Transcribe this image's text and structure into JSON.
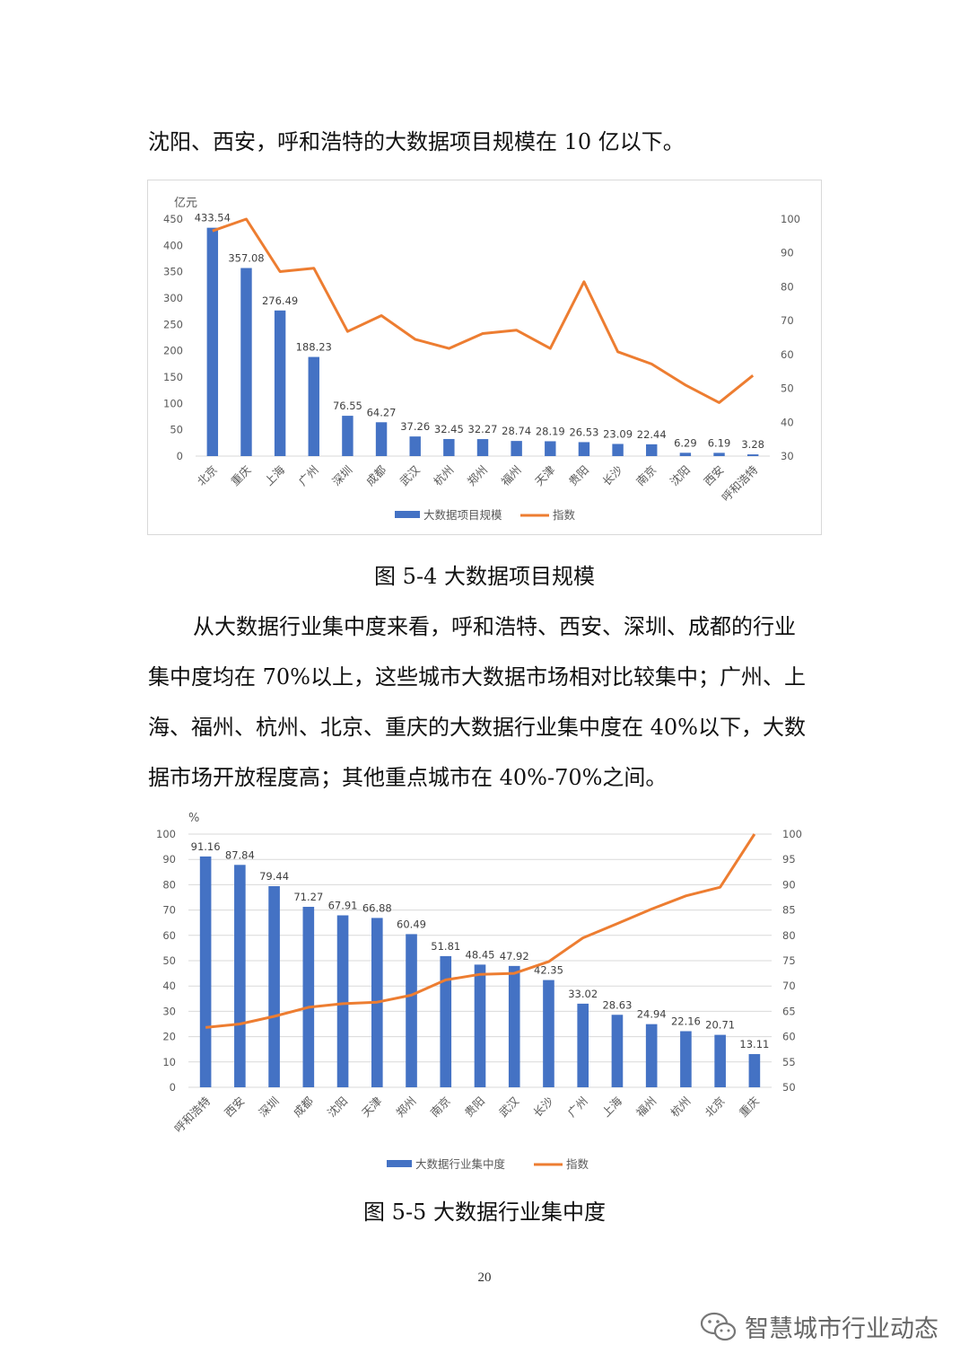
{
  "text": {
    "para_top": "沈阳、西安，呼和浩特的大数据项目规模在 10 亿以下。",
    "caption1": "图 5-4 大数据项目规模",
    "para2_line1": "从大数据行业集中度来看，呼和浩特、西安、深圳、成都的行业",
    "para2_line2": "集中度均在 70%以上，这些城市大数据市场相对比较集中；广州、上",
    "para2_line3": "海、福州、杭州、北京、重庆的大数据行业集中度在 40%以下，大数",
    "para2_line4": "据市场开放程度高；其他重点城市在 40%-70%之间。",
    "caption2": "图 5-5 大数据行业集中度",
    "page_number": "20",
    "watermark": "智慧城市行业动态"
  },
  "colors": {
    "bar": "#4472c4",
    "line": "#ed7d31",
    "grid": "#d9d9d9",
    "axis_text": "#595959"
  },
  "chart_data": [
    {
      "type": "bar",
      "ylabel": "亿元",
      "ylim": [
        0,
        450
      ],
      "yticks": [
        "0",
        "50",
        "100",
        "150",
        "200",
        "250",
        "300",
        "350",
        "400",
        "450"
      ],
      "y2lim": [
        30,
        100
      ],
      "y2ticks": [
        "30",
        "40",
        "50",
        "60",
        "70",
        "80",
        "90",
        "100"
      ],
      "categories": [
        "北京",
        "重庆",
        "上海",
        "广州",
        "深圳",
        "成都",
        "武汉",
        "杭州",
        "郑州",
        "福州",
        "天津",
        "贵阳",
        "长沙",
        "南京",
        "沈阳",
        "西安",
        "呼和浩特"
      ],
      "series": [
        {
          "name": "大数据项目规模",
          "type": "bar",
          "axis": "left",
          "values": [
            433.54,
            357.08,
            276.49,
            188.23,
            76.55,
            64.27,
            37.26,
            32.45,
            32.27,
            28.74,
            28.19,
            26.53,
            23.09,
            22.44,
            6.29,
            6.19,
            3.28
          ],
          "labels": [
            "433.54",
            "357.08",
            "276.49",
            "188.23",
            "76.55",
            "64.27",
            "37.26",
            "32.45",
            "32.27",
            "28.74",
            "28.19",
            "26.53",
            "23.09",
            "22.44",
            "6.29",
            "6.19",
            "3.28"
          ]
        },
        {
          "name": "指数",
          "type": "line",
          "axis": "right",
          "values": [
            96.5,
            100,
            84.5,
            85.5,
            66.8,
            71.5,
            64.5,
            61.8,
            66.2,
            67.2,
            61.8,
            81.5,
            60.8,
            57.2,
            51,
            45.8,
            53.8
          ]
        }
      ],
      "legend": "bottom"
    },
    {
      "type": "bar",
      "ylabel": "%",
      "ylim": [
        0,
        100
      ],
      "yticks": [
        "0",
        "10",
        "20",
        "30",
        "40",
        "50",
        "60",
        "70",
        "80",
        "90",
        "100"
      ],
      "y2lim": [
        50,
        100
      ],
      "y2ticks": [
        "50",
        "55",
        "60",
        "65",
        "70",
        "75",
        "80",
        "85",
        "90",
        "95",
        "100"
      ],
      "categories": [
        "呼和浩特",
        "西安",
        "深圳",
        "成都",
        "沈阳",
        "天津",
        "郑州",
        "南京",
        "贵阳",
        "武汉",
        "长沙",
        "广州",
        "上海",
        "福州",
        "杭州",
        "北京",
        "重庆"
      ],
      "series": [
        {
          "name": "大数据行业集中度",
          "type": "bar",
          "axis": "left",
          "values": [
            91.16,
            87.84,
            79.44,
            71.27,
            67.91,
            66.88,
            60.49,
            51.81,
            48.45,
            47.92,
            42.35,
            33.02,
            28.63,
            24.94,
            22.16,
            20.71,
            13.11
          ],
          "labels": [
            "91.16",
            "87.84",
            "79.44",
            "71.27",
            "67.91",
            "66.88",
            "60.49",
            "51.81",
            "48.45",
            "47.92",
            "42.35",
            "33.02",
            "28.63",
            "24.94",
            "22.16",
            "20.71",
            "13.11"
          ]
        },
        {
          "name": "指数",
          "type": "line",
          "axis": "right",
          "values": [
            61.8,
            62.5,
            64,
            65.8,
            66.5,
            66.8,
            68.2,
            71.2,
            72.3,
            72.5,
            74.8,
            79.5,
            82.3,
            85.2,
            87.8,
            89.5,
            100
          ]
        }
      ],
      "legend": "bottom"
    }
  ]
}
